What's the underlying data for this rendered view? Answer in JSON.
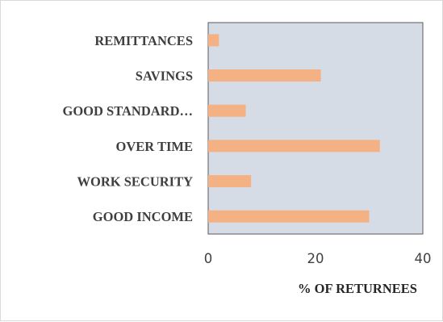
{
  "chart_data": {
    "type": "bar",
    "orientation": "horizontal",
    "categories": [
      "REMITTANCES",
      "SAVINGS",
      "GOOD STANDARD…",
      "OVER TIME",
      "WORK SECURITY",
      "GOOD INCOME"
    ],
    "values": [
      2,
      21,
      7,
      32,
      8,
      30
    ],
    "xlabel": "% OF RETURNEES",
    "xlim": [
      0,
      40
    ],
    "xticks": [
      0,
      20,
      40
    ],
    "grid": false,
    "colors": {
      "bar": "#f4b183",
      "plot_background": "#d6dce5",
      "plot_border": "#595959",
      "category_text": "#3f3f3f",
      "tick_text": "#404040"
    }
  }
}
